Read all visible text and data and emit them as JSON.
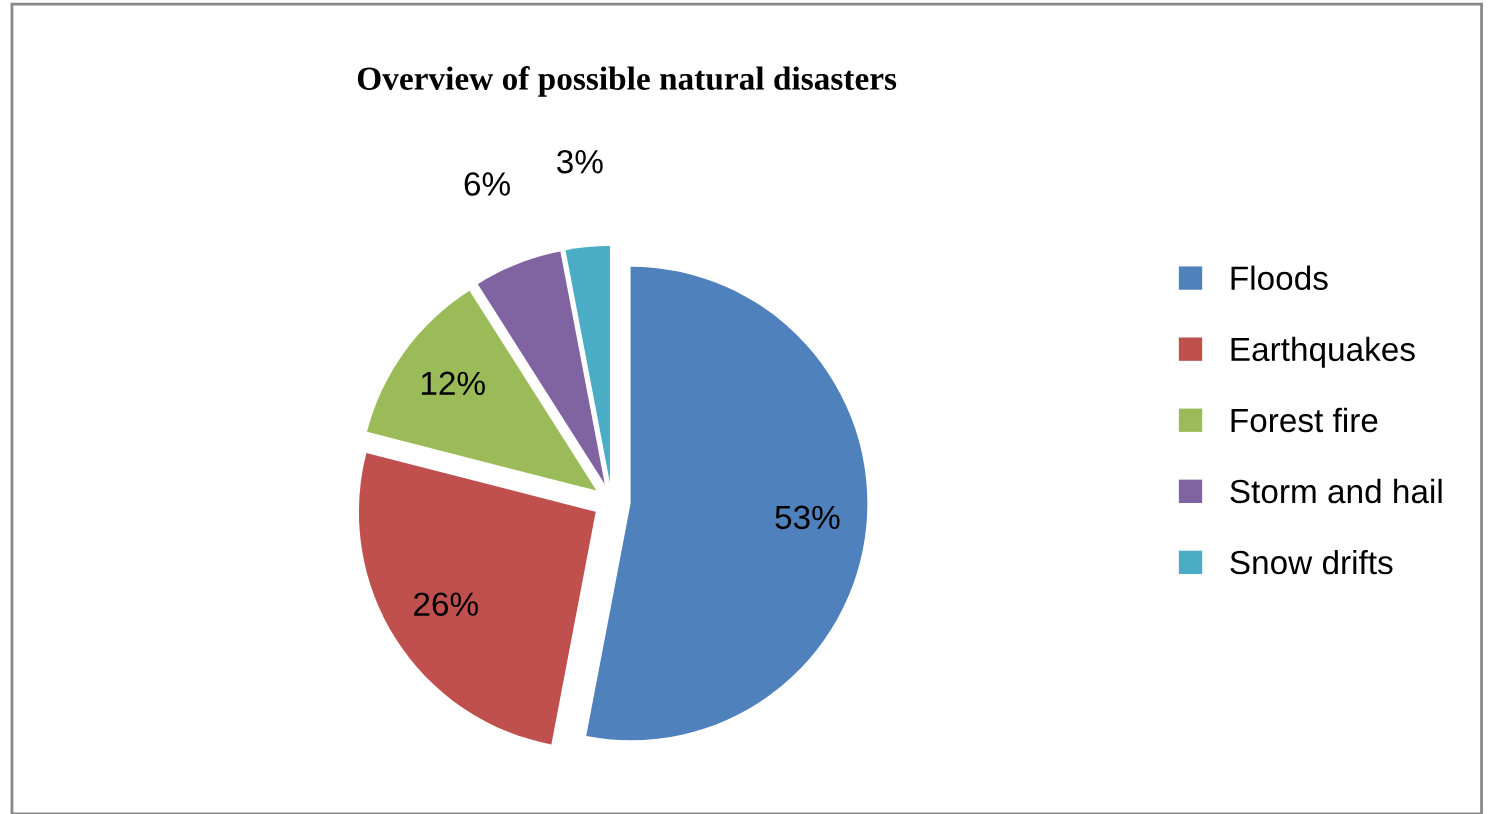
{
  "chart_data": {
    "type": "pie",
    "title": "Overview of possible natural disasters",
    "categories": [
      "Floods",
      "Earthquakes",
      "Forest fire",
      "Storm and hail",
      "Snow drifts"
    ],
    "values": [
      53,
      26,
      12,
      6,
      3
    ],
    "colors": [
      "#4f81bd",
      "#c0504d",
      "#9bbb59",
      "#8064a2",
      "#4bacc6"
    ],
    "value_labels": [
      "53%",
      "26%",
      "12%",
      "6%",
      "3%"
    ],
    "legend": "right"
  }
}
